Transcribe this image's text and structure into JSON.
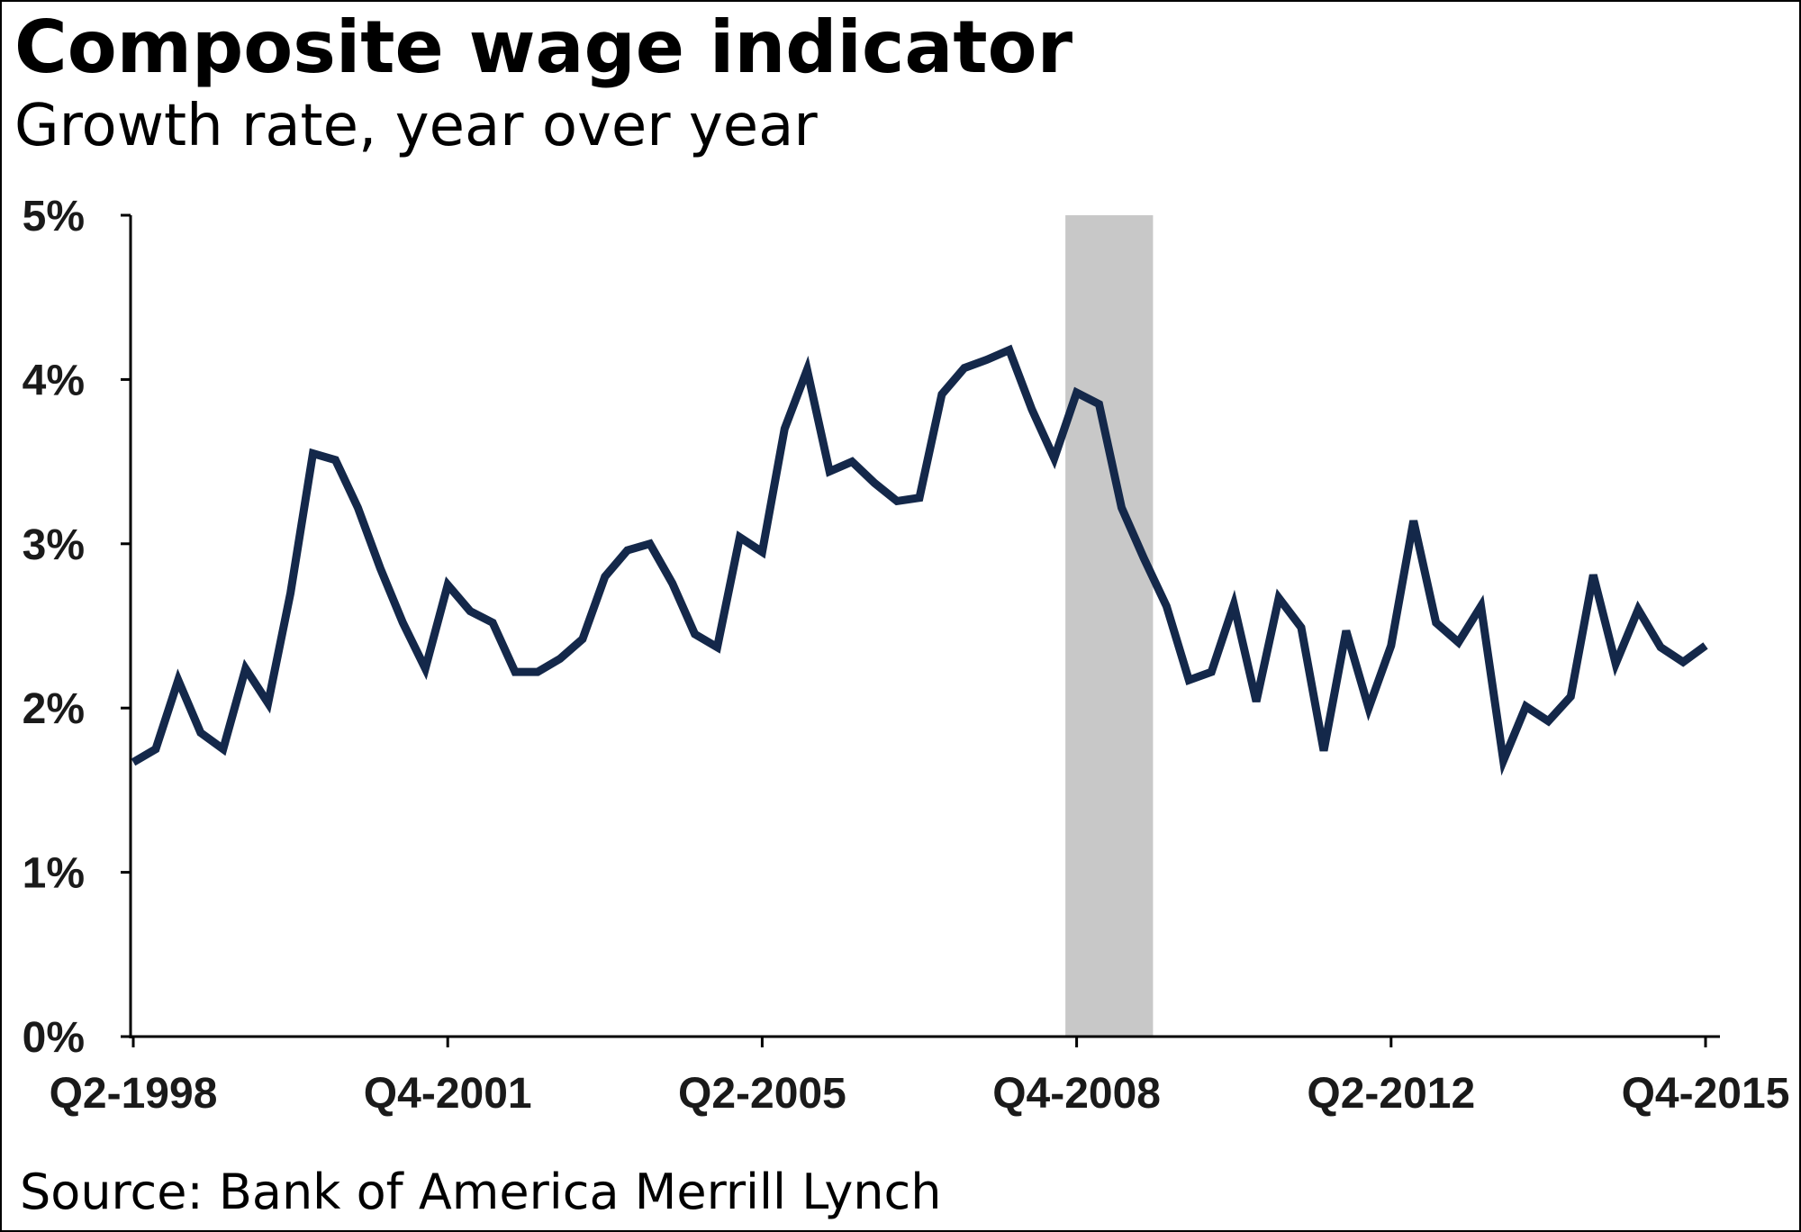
{
  "title": "Composite wage indicator",
  "subtitle": "Growth rate, year over year",
  "source": "Source: Bank of America Merrill Lynch",
  "colors": {
    "line": "#14284a",
    "recession": "#c8c8c8",
    "axis": "#000000"
  },
  "chart_data": {
    "type": "line",
    "title": "Composite wage indicator",
    "subtitle": "Growth rate, year over year",
    "xlabel": "",
    "ylabel": "",
    "y_ticks": [
      "0%",
      "1%",
      "2%",
      "3%",
      "4%",
      "5%"
    ],
    "ylim": [
      0,
      5
    ],
    "x_tick_labels": [
      {
        "index": 0,
        "label": "Q2-1998"
      },
      {
        "index": 14,
        "label": "Q4-2001"
      },
      {
        "index": 28,
        "label": "Q2-2005"
      },
      {
        "index": 42,
        "label": "Q4-2008"
      },
      {
        "index": 56,
        "label": "Q2-2012"
      },
      {
        "index": 70,
        "label": "Q4-2015"
      }
    ],
    "shaded_region": {
      "start_index": 41.5,
      "end_index": 45.4
    },
    "grid": false,
    "legend": "none",
    "series": [
      {
        "values": [
          1.67,
          1.75,
          2.17,
          1.85,
          1.75,
          2.24,
          2.03,
          2.7,
          3.55,
          3.51,
          3.22,
          2.85,
          2.52,
          2.24,
          2.75,
          2.59,
          2.52,
          2.22,
          2.22,
          2.3,
          2.42,
          2.8,
          2.96,
          3.0,
          2.76,
          2.45,
          2.37,
          3.04,
          2.95,
          3.7,
          4.06,
          3.44,
          3.5,
          3.37,
          3.26,
          3.28,
          3.91,
          4.07,
          4.12,
          4.18,
          3.82,
          3.52,
          3.92,
          3.85,
          3.22,
          2.91,
          2.62,
          2.17,
          2.22,
          2.63,
          2.04,
          2.67,
          2.49,
          1.74,
          2.47,
          2.0,
          2.38,
          3.14,
          2.52,
          2.4,
          2.62,
          1.68,
          2.01,
          1.92,
          2.07,
          2.81,
          2.27,
          2.6,
          2.37,
          2.28,
          2.38
        ]
      }
    ]
  }
}
